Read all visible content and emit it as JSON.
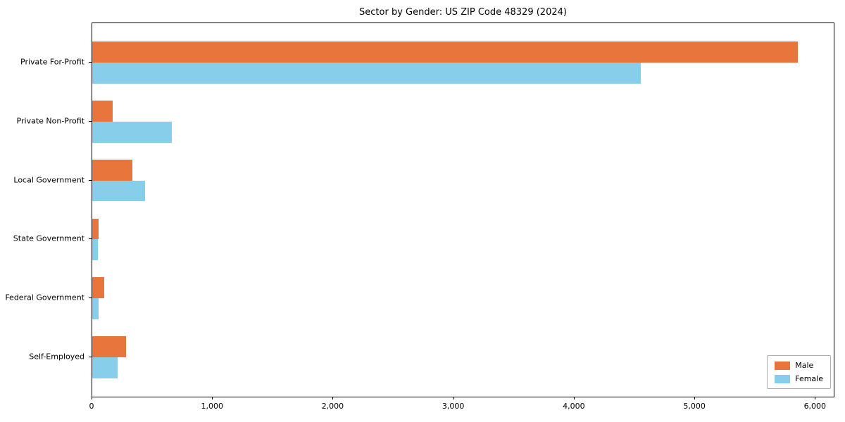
{
  "chart_data": {
    "type": "bar",
    "orientation": "horizontal",
    "title": "Sector by Gender: US ZIP Code 48329 (2024)",
    "categories": [
      "Private For-Profit",
      "Private Non-Profit",
      "Local Government",
      "State Government",
      "Federal Government",
      "Self-Employed"
    ],
    "series": [
      {
        "name": "Male",
        "color": "#e8763c",
        "values": [
          5850,
          170,
          330,
          55,
          100,
          280
        ]
      },
      {
        "name": "Female",
        "color": "#87ceeb",
        "values": [
          4550,
          660,
          440,
          45,
          50,
          210
        ]
      }
    ],
    "xlabel": "",
    "ylabel": "",
    "xlim": [
      0,
      6150
    ],
    "xticks": [
      0,
      1000,
      2000,
      3000,
      4000,
      5000,
      6000
    ],
    "xtick_labels": [
      "0",
      "1,000",
      "2,000",
      "3,000",
      "4,000",
      "5,000",
      "6,000"
    ],
    "grid": false,
    "legend_position": "lower right"
  }
}
